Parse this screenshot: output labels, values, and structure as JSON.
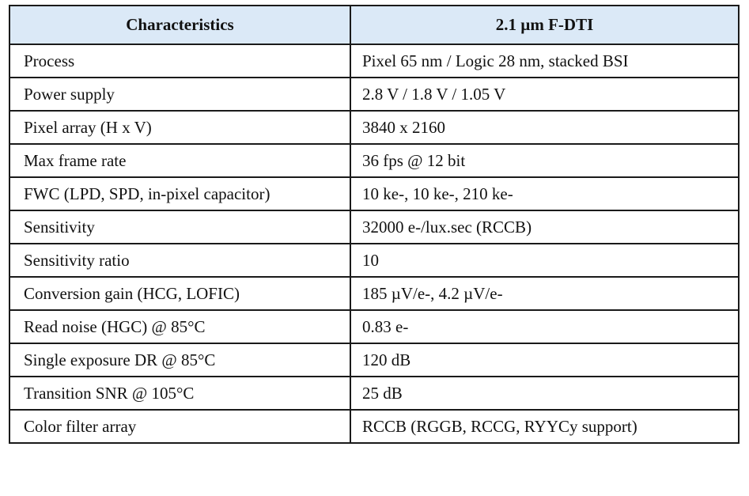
{
  "table": {
    "headers": [
      "Characteristics",
      "2.1 µm F-DTI"
    ],
    "rows": [
      [
        "Process",
        "Pixel 65 nm / Logic 28 nm, stacked BSI"
      ],
      [
        "Power supply",
        "2.8 V / 1.8 V / 1.05 V"
      ],
      [
        "Pixel array (H x V)",
        "3840 x 2160"
      ],
      [
        "Max frame rate",
        "36 fps @ 12 bit"
      ],
      [
        "FWC (LPD, SPD, in-pixel capacitor)",
        "10 ke-, 10 ke-, 210 ke-"
      ],
      [
        "Sensitivity",
        "32000 e-/lux.sec (RCCB)"
      ],
      [
        "Sensitivity ratio",
        "10"
      ],
      [
        "Conversion gain (HCG, LOFIC)",
        "185 µV/e-, 4.2 µV/e-"
      ],
      [
        "Read noise (HGC) @ 85°C",
        "0.83 e-"
      ],
      [
        "Single exposure DR @ 85°C",
        "120 dB"
      ],
      [
        "Transition SNR @ 105°C",
        "25 dB"
      ],
      [
        "Color filter array",
        "RCCB (RGGB, RCCG, RYYCy support)"
      ]
    ]
  },
  "colors": {
    "header_bg": "#dbe9f7",
    "border": "#1a1a1a"
  }
}
